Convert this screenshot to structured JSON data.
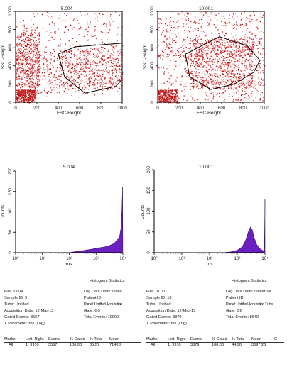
{
  "chart_data": [
    {
      "type": "scatter",
      "title": "5.004",
      "xlabel": "FSC-Height",
      "ylabel": "SSC-Height",
      "xlim": [
        0,
        1000
      ],
      "ylim": [
        0,
        1000
      ],
      "x_ticks": [
        "0",
        "200",
        "400",
        "600",
        "800",
        "1000"
      ],
      "y_ticks": [
        "0",
        "200",
        "400",
        "600",
        "800",
        "1000"
      ],
      "dot_color": "#d62020",
      "gate_polygon": [
        [
          400,
          530
        ],
        [
          560,
          610
        ],
        [
          1000,
          650
        ],
        [
          1000,
          250
        ],
        [
          940,
          175
        ],
        [
          650,
          100
        ],
        [
          460,
          280
        ]
      ]
    },
    {
      "type": "scatter",
      "title": "10.001",
      "xlabel": "FSC-Height",
      "ylabel": "SSC-Height",
      "xlim": [
        0,
        1000
      ],
      "ylim": [
        0,
        1000
      ],
      "x_ticks": [
        "0",
        "200",
        "400",
        "600",
        "800",
        "1000"
      ],
      "y_ticks": [
        "0",
        "200",
        "400",
        "600",
        "800",
        "1000"
      ],
      "dot_color": "#d62020",
      "gate_polygon": [
        [
          260,
          530
        ],
        [
          580,
          720
        ],
        [
          840,
          620
        ],
        [
          960,
          460
        ],
        [
          900,
          330
        ],
        [
          720,
          200
        ],
        [
          500,
          140
        ],
        [
          300,
          280
        ]
      ]
    },
    {
      "type": "histogram",
      "title": "5.004",
      "xlabel": "ros",
      "ylabel": "Counts",
      "log_x": true,
      "xlim": [
        1,
        10000
      ],
      "ylim": [
        0,
        200
      ],
      "x_ticks": [
        "10⁰",
        "10¹",
        "10²",
        "10³",
        "10⁴"
      ],
      "y_ticks": [
        "0",
        "50",
        "100",
        "150",
        "200"
      ],
      "fill_color": "#6a1fc0",
      "bins": [
        {
          "x": 100,
          "y": 0
        },
        {
          "x": 150,
          "y": 2
        },
        {
          "x": 250,
          "y": 4
        },
        {
          "x": 400,
          "y": 6
        },
        {
          "x": 600,
          "y": 8
        },
        {
          "x": 900,
          "y": 10
        },
        {
          "x": 1300,
          "y": 12
        },
        {
          "x": 2000,
          "y": 14
        },
        {
          "x": 3000,
          "y": 17
        },
        {
          "x": 4500,
          "y": 22
        },
        {
          "x": 6000,
          "y": 30
        },
        {
          "x": 7500,
          "y": 40
        },
        {
          "x": 8500,
          "y": 60
        },
        {
          "x": 9200,
          "y": 105
        },
        {
          "x": 9700,
          "y": 160
        },
        {
          "x": 9950,
          "y": 25
        }
      ]
    },
    {
      "type": "histogram",
      "title": "10.001",
      "xlabel": "ros",
      "ylabel": "Counts",
      "log_x": true,
      "xlim": [
        1,
        10000
      ],
      "ylim": [
        0,
        200
      ],
      "x_ticks": [
        "10⁰",
        "10¹",
        "10²",
        "10³",
        "10⁴"
      ],
      "y_ticks": [
        "0",
        "50",
        "100",
        "150",
        "200"
      ],
      "fill_color": "#6a1fc0",
      "bins": [
        {
          "x": 300,
          "y": 0
        },
        {
          "x": 600,
          "y": 2
        },
        {
          "x": 1000,
          "y": 6
        },
        {
          "x": 1500,
          "y": 14
        },
        {
          "x": 2000,
          "y": 30
        },
        {
          "x": 2500,
          "y": 50
        },
        {
          "x": 3000,
          "y": 62
        },
        {
          "x": 3500,
          "y": 55
        },
        {
          "x": 4000,
          "y": 38
        },
        {
          "x": 5000,
          "y": 20
        },
        {
          "x": 6500,
          "y": 10
        },
        {
          "x": 8000,
          "y": 6
        },
        {
          "x": 9500,
          "y": 4
        },
        {
          "x": 10000,
          "y": 130
        }
      ]
    }
  ],
  "stats": [
    {
      "heading": "Histogram Statistics",
      "file": "File: 5.004",
      "sample_id": "Sample ID: 5",
      "tube": "Tube: Untitled",
      "acq_date": "Acquisition Date: 12-Mar-13",
      "gated": "Gated Events: 3557",
      "xparam": "X Parameter: ros (Log)",
      "log_units": "Log Data Units: Linea",
      "patient": "Patient ID:",
      "panel": "Panel: Untitled Acquisition",
      "gate": "Gate: G5",
      "total": "Total Events: 10000",
      "table_header": [
        "Marker",
        "Left, Right",
        "Events",
        "% Gated",
        "% Total",
        "Mean"
      ],
      "table_row": [
        "All",
        "1, 9910",
        "3557",
        "100.00",
        "35.57",
        "7148.9"
      ]
    },
    {
      "heading": "Histogram Statistics",
      "file": "File: 10.001",
      "sample_id": "Sample ID: 10",
      "tube": "Tube: Untitled",
      "acq_date": "Acquisition Date: 12-Mar-13",
      "gated": "Gated Events: 3879",
      "xparam": "X Parameter: ros (Log)",
      "log_units": "Log Data Units: Linear Va",
      "patient": "Patient ID:",
      "panel": "Panel: Untitled Acquisition Tube",
      "gate": "Gate: G6",
      "total": "Total Events: 8640",
      "table_header": [
        "Marker",
        "Left, Right",
        "Events",
        "% Gated",
        "% Total",
        "Mean",
        "G"
      ],
      "table_row": [
        "All",
        "1, 9910",
        "3879",
        "100.00",
        "44.90",
        "3097.26"
      ]
    }
  ]
}
